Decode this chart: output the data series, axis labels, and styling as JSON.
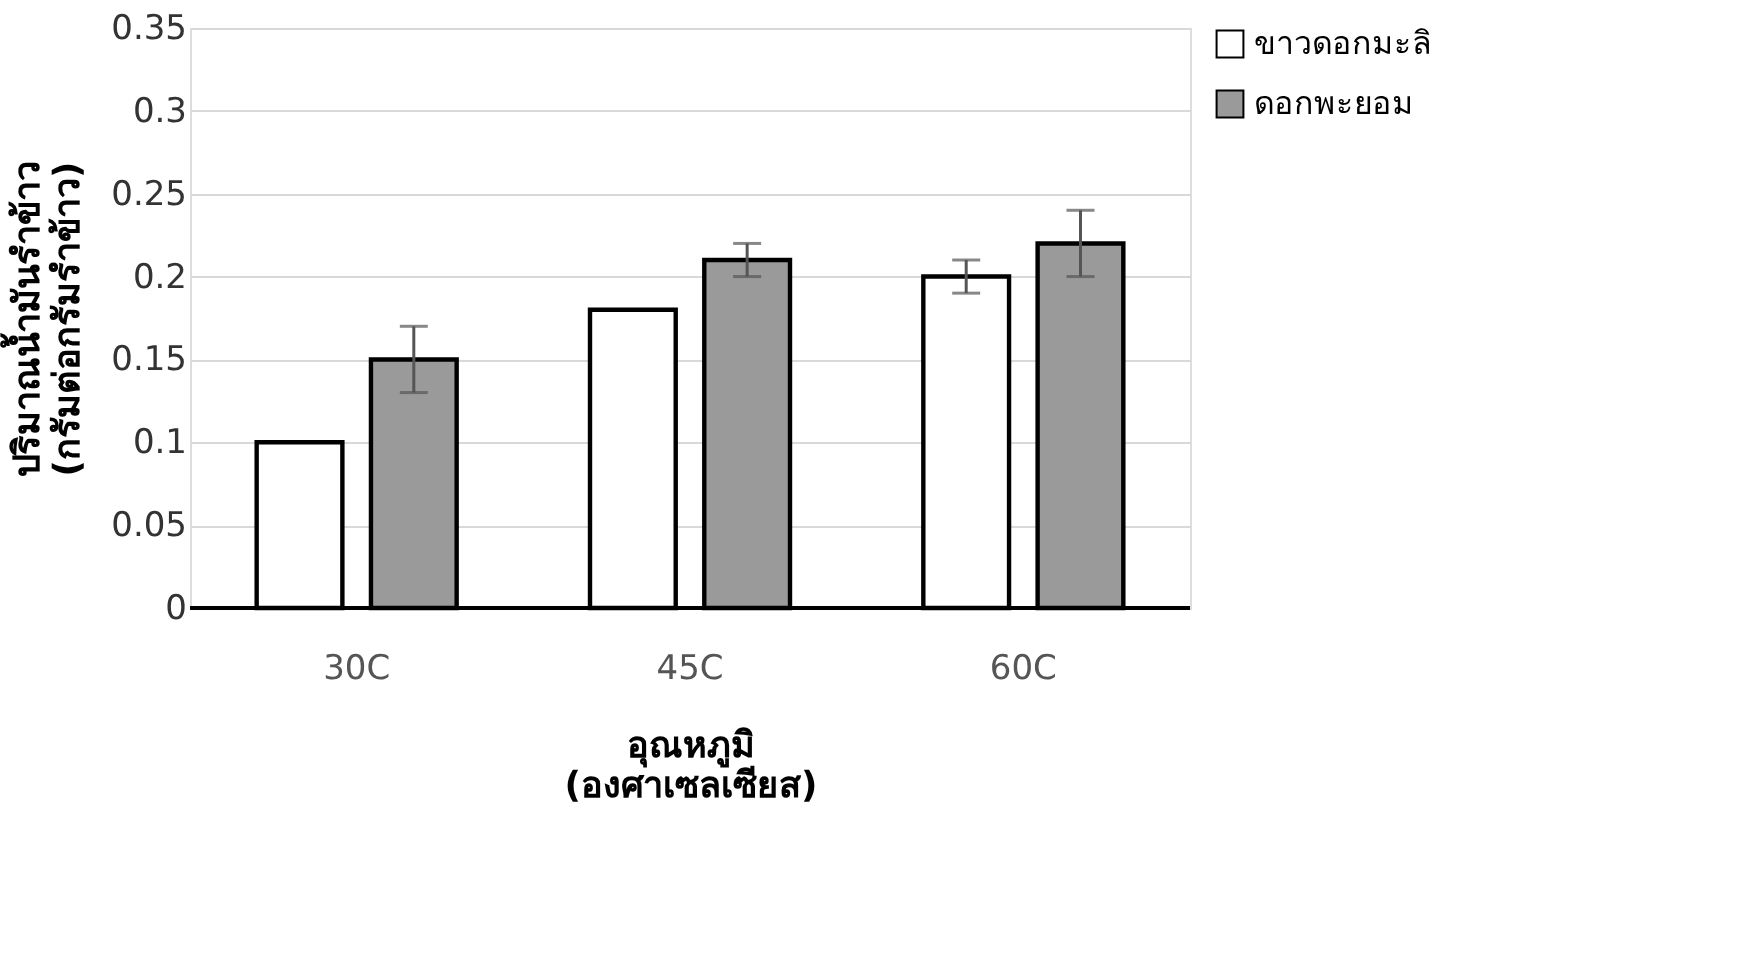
{
  "chart_data": {
    "type": "bar",
    "categories": [
      "30C",
      "45C",
      "60C"
    ],
    "series": [
      {
        "name": "ขาวดอกมะลิ",
        "color": "#ffffff",
        "values": [
          0.1,
          0.18,
          0.2
        ],
        "errors": [
          null,
          null,
          0.01
        ]
      },
      {
        "name": "ดอกพะยอม",
        "color": "#9a9a9a",
        "values": [
          0.15,
          0.21,
          0.22
        ],
        "errors": [
          0.02,
          0.01,
          0.02
        ]
      }
    ],
    "xlabel": "อุณหภูมิ\n(องศาเซลเซียส)",
    "ylabel": "ปริมาณน้ำมันรำข้าว\n(กรัมต่อกรัมรำข้าว)",
    "ylim": [
      0,
      0.35
    ],
    "yticks": [
      0,
      0.05,
      0.1,
      0.15,
      0.2,
      0.25,
      0.3,
      0.35
    ],
    "grid": "y",
    "legend": "top right"
  }
}
